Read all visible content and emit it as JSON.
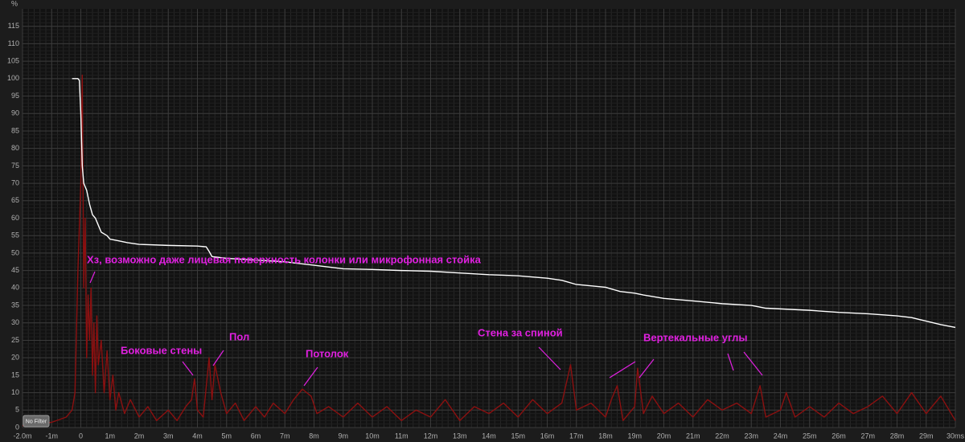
{
  "chart_data": {
    "type": "line",
    "y_label": "%",
    "xlim": [
      -2,
      30
    ],
    "ylim": [
      0,
      120
    ],
    "xticks": [
      {
        "value": -2,
        "label": "-2.0m"
      },
      {
        "value": -1,
        "label": "-1m"
      },
      0,
      {
        "value": 1,
        "label": "1m"
      },
      {
        "value": 2,
        "label": "2m"
      },
      {
        "value": 3,
        "label": "3m"
      },
      {
        "value": 4,
        "label": "4m"
      },
      {
        "value": 5,
        "label": "5m"
      },
      {
        "value": 6,
        "label": "6m"
      },
      {
        "value": 7,
        "label": "7m"
      },
      {
        "value": 8,
        "label": "8m"
      },
      {
        "value": 9,
        "label": "9m"
      },
      {
        "value": 10,
        "label": "10m"
      },
      {
        "value": 11,
        "label": "11m"
      },
      {
        "value": 12,
        "label": "12m"
      },
      {
        "value": 13,
        "label": "13m"
      },
      {
        "value": 14,
        "label": "14m"
      },
      {
        "value": 15,
        "label": "15m"
      },
      {
        "value": 16,
        "label": "16m"
      },
      {
        "value": 17,
        "label": "17m"
      },
      {
        "value": 18,
        "label": "18m"
      },
      {
        "value": 19,
        "label": "19m"
      },
      {
        "value": 20,
        "label": "20m"
      },
      {
        "value": 21,
        "label": "21m"
      },
      {
        "value": 22,
        "label": "22m"
      },
      {
        "value": 23,
        "label": "23m"
      },
      {
        "value": 24,
        "label": "24m"
      },
      {
        "value": 25,
        "label": "25m"
      },
      {
        "value": 26,
        "label": "26m"
      },
      {
        "value": 27,
        "label": "27m"
      },
      {
        "value": 28,
        "label": "28m"
      },
      {
        "value": 29,
        "label": "29m"
      },
      {
        "value": 30,
        "label": "30ms"
      }
    ],
    "yticks": [
      0,
      5,
      10,
      15,
      20,
      25,
      30,
      35,
      40,
      45,
      50,
      55,
      60,
      65,
      70,
      75,
      80,
      85,
      90,
      95,
      100,
      105,
      110,
      115
    ],
    "grid": true,
    "series": [
      {
        "color": "#8b1010",
        "x": [
          -2,
          -1,
          -0.5,
          -0.3,
          -0.2,
          -0.1,
          0,
          0.05,
          0.1,
          0.15,
          0.2,
          0.25,
          0.3,
          0.35,
          0.4,
          0.45,
          0.5,
          0.55,
          0.6,
          0.7,
          0.8,
          0.9,
          1.0,
          1.1,
          1.2,
          1.3,
          1.5,
          1.7,
          2,
          2.3,
          2.6,
          3,
          3.3,
          3.6,
          3.8,
          3.9,
          4.0,
          4.2,
          4.4,
          4.5,
          4.6,
          4.8,
          5,
          5.3,
          5.6,
          6,
          6.3,
          6.6,
          7,
          7.3,
          7.6,
          7.9,
          8.1,
          8.5,
          9,
          9.5,
          10,
          10.5,
          11,
          11.5,
          12,
          12.5,
          13,
          13.5,
          14,
          14.5,
          15,
          15.5,
          16,
          16.5,
          16.8,
          17,
          17.5,
          18,
          18.2,
          18.4,
          18.6,
          19,
          19.1,
          19.3,
          19.6,
          20,
          20.5,
          21,
          21.5,
          22,
          22.5,
          23,
          23.3,
          23.5,
          24,
          24.2,
          24.5,
          25,
          25.5,
          26,
          26.5,
          27,
          27.5,
          28,
          28.5,
          29,
          29.5,
          30
        ],
        "values": [
          0.5,
          1.5,
          3,
          5,
          10,
          45,
          70,
          101,
          40,
          60,
          20,
          38,
          25,
          40,
          15,
          30,
          10,
          32,
          18,
          25,
          10,
          22,
          8,
          15,
          5,
          10,
          4,
          8,
          3,
          6,
          2,
          5,
          2,
          6,
          8,
          14,
          5,
          3,
          20,
          8,
          18,
          10,
          4,
          7,
          2,
          6,
          3,
          7,
          4,
          8,
          11,
          9,
          4,
          6,
          3,
          7,
          3,
          6,
          2,
          5,
          3,
          8,
          2,
          6,
          4,
          7,
          3,
          8,
          4,
          7,
          18,
          5,
          7,
          3,
          8,
          12,
          2,
          6,
          17,
          4,
          9,
          4,
          7,
          3,
          8,
          5,
          7,
          4,
          12,
          3,
          5,
          10,
          3,
          6,
          3,
          7,
          4,
          6,
          9,
          4,
          10,
          4,
          9,
          2
        ]
      },
      {
        "color": "#ffffff",
        "x": [
          -0.3,
          -0.1,
          -0.05,
          0.0,
          0.05,
          0.1,
          0.2,
          0.3,
          0.4,
          0.5,
          0.6,
          0.7,
          0.9,
          1.0,
          1.3,
          1.6,
          2,
          3,
          4,
          4.3,
          4.4,
          4.5,
          5,
          6,
          7,
          7.5,
          8,
          9,
          10,
          11,
          12,
          13,
          14,
          15,
          16,
          16.5,
          17,
          18,
          18.5,
          19,
          19.3,
          20,
          21,
          22,
          23,
          23.5,
          24,
          25,
          26,
          27,
          28,
          28.5,
          29,
          29.5,
          30
        ],
        "values": [
          100,
          100,
          99.5,
          90,
          75,
          70,
          68,
          64,
          61,
          60,
          58,
          56,
          55,
          54,
          53.5,
          53,
          52.5,
          52.2,
          52,
          51.8,
          50.5,
          49,
          48.5,
          48,
          47.5,
          47,
          46.5,
          45.5,
          45.3,
          45,
          44.8,
          44.3,
          43.8,
          43.5,
          42.8,
          42.2,
          41,
          40.2,
          39,
          38.5,
          38,
          37,
          36.3,
          35.5,
          35,
          34.2,
          34,
          33.6,
          33,
          32.6,
          32,
          31.5,
          30.5,
          29.5,
          28.7
        ]
      }
    ],
    "annotations": [
      "Хз, возможно даже лицевая поверхность колонки или микрофонная стойка",
      "Боковые стены",
      "Пол",
      "Потолок",
      "Стена за спиной",
      "Вертекальные углы"
    ]
  },
  "controls": {
    "filter_button": "No Filter"
  }
}
